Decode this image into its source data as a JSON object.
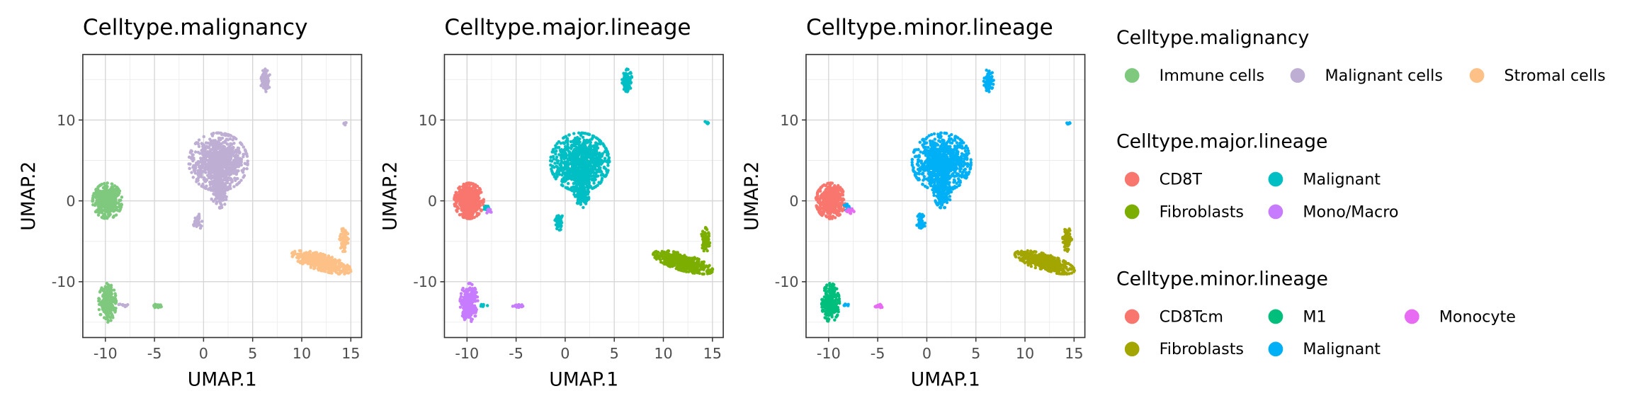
{
  "chart_data": [
    {
      "type": "scatter",
      "title": "Celltype.malignancy",
      "xlabel": "UMAP.1",
      "ylabel": "UMAP.2",
      "xlim": [
        -12.3,
        16.1
      ],
      "ylim": [
        -16.9,
        18.1
      ],
      "xticks": [
        -10,
        -5,
        0,
        5,
        10,
        15
      ],
      "xtick_labels": [
        "-10",
        "-5",
        "0",
        "5",
        "10",
        "15"
      ],
      "yticks": [
        -10,
        0,
        10
      ],
      "ytick_labels": [
        "-10",
        "0",
        "10"
      ],
      "grid": true,
      "clusters": [
        {
          "category": "Malignant cells",
          "cx": 1.5,
          "cy": 4.8,
          "rx": 3.0,
          "ry": 3.6,
          "n": 900
        },
        {
          "category": "Malignant cells",
          "cx": 1.6,
          "cy": 1.3,
          "rx": 0.9,
          "ry": 2.2,
          "n": 180
        },
        {
          "category": "Malignant cells",
          "cx": 6.3,
          "cy": 14.9,
          "rx": 0.5,
          "ry": 1.4,
          "n": 90
        },
        {
          "category": "Malignant cells",
          "cx": -0.6,
          "cy": -2.6,
          "rx": 0.45,
          "ry": 1.0,
          "n": 40
        },
        {
          "category": "Malignant cells",
          "cx": 14.4,
          "cy": 9.6,
          "rx": 0.25,
          "ry": 0.25,
          "n": 8
        },
        {
          "category": "Malignant cells",
          "cx": -8.2,
          "cy": -12.9,
          "rx": 0.5,
          "ry": 0.2,
          "n": 10
        },
        {
          "category": "Immune cells",
          "cx": -9.8,
          "cy": 0.0,
          "rx": 1.5,
          "ry": 2.2,
          "n": 500
        },
        {
          "category": "Immune cells",
          "cx": -9.8,
          "cy": -12.6,
          "rx": 0.9,
          "ry": 2.4,
          "n": 250
        },
        {
          "category": "Immune cells",
          "cx": -4.8,
          "cy": -13.0,
          "rx": 0.55,
          "ry": 0.2,
          "n": 20
        },
        {
          "category": "Stromal cells",
          "cx": 12.0,
          "cy": -7.6,
          "rx": 3.2,
          "ry": 1.0,
          "n": 500,
          "angle": -20
        },
        {
          "category": "Stromal cells",
          "cx": 14.3,
          "cy": -4.8,
          "rx": 0.45,
          "ry": 1.5,
          "n": 80
        }
      ]
    },
    {
      "type": "scatter",
      "title": "Celltype.major.lineage",
      "xlabel": "UMAP.1",
      "ylabel": "UMAP.2",
      "xlim": [
        -12.3,
        16.1
      ],
      "ylim": [
        -16.9,
        18.1
      ],
      "xticks": [
        -10,
        -5,
        0,
        5,
        10,
        15
      ],
      "xtick_labels": [
        "-10",
        "-5",
        "0",
        "5",
        "10",
        "15"
      ],
      "yticks": [
        -10,
        0,
        10
      ],
      "ytick_labels": [
        "-10",
        "0",
        "10"
      ],
      "grid": true,
      "clusters": [
        {
          "category": "Malignant",
          "cx": 1.5,
          "cy": 4.8,
          "rx": 3.0,
          "ry": 3.6,
          "n": 900
        },
        {
          "category": "Malignant",
          "cx": 1.6,
          "cy": 1.3,
          "rx": 0.9,
          "ry": 2.2,
          "n": 180
        },
        {
          "category": "Malignant",
          "cx": 6.3,
          "cy": 14.9,
          "rx": 0.5,
          "ry": 1.4,
          "n": 90
        },
        {
          "category": "Malignant",
          "cx": -0.6,
          "cy": -2.6,
          "rx": 0.45,
          "ry": 1.0,
          "n": 40
        },
        {
          "category": "Malignant",
          "cx": 14.4,
          "cy": 9.6,
          "rx": 0.25,
          "ry": 0.25,
          "n": 8
        },
        {
          "category": "CD8T",
          "cx": -9.8,
          "cy": 0.0,
          "rx": 1.5,
          "ry": 2.2,
          "n": 500
        },
        {
          "category": "Malignant",
          "cx": -8.1,
          "cy": -0.8,
          "rx": 0.4,
          "ry": 0.4,
          "n": 12
        },
        {
          "category": "Mono/Macro",
          "cx": -7.8,
          "cy": -1.2,
          "rx": 0.4,
          "ry": 0.4,
          "n": 12
        },
        {
          "category": "Mono/Macro",
          "cx": -9.8,
          "cy": -12.6,
          "rx": 0.9,
          "ry": 2.4,
          "n": 250
        },
        {
          "category": "Mono/Macro",
          "cx": -4.8,
          "cy": -13.0,
          "rx": 0.55,
          "ry": 0.2,
          "n": 20
        },
        {
          "category": "Malignant",
          "cx": -8.3,
          "cy": -12.9,
          "rx": 0.4,
          "ry": 0.2,
          "n": 8
        },
        {
          "category": "Fibroblasts",
          "cx": 12.0,
          "cy": -7.6,
          "rx": 3.2,
          "ry": 1.0,
          "n": 500,
          "angle": -20
        },
        {
          "category": "Fibroblasts",
          "cx": 14.3,
          "cy": -4.8,
          "rx": 0.45,
          "ry": 1.5,
          "n": 80
        }
      ]
    },
    {
      "type": "scatter",
      "title": "Celltype.minor.lineage",
      "xlabel": "UMAP.1",
      "ylabel": "UMAP.2",
      "xlim": [
        -12.3,
        16.1
      ],
      "ylim": [
        -16.9,
        18.1
      ],
      "xticks": [
        -10,
        -5,
        0,
        5,
        10,
        15
      ],
      "xtick_labels": [
        "-10",
        "-5",
        "0",
        "5",
        "10",
        "15"
      ],
      "yticks": [
        -10,
        0,
        10
      ],
      "ytick_labels": [
        "-10",
        "0",
        "10"
      ],
      "grid": true,
      "clusters": [
        {
          "category": "Malignant",
          "cx": 1.5,
          "cy": 4.8,
          "rx": 3.0,
          "ry": 3.6,
          "n": 900
        },
        {
          "category": "Malignant",
          "cx": 1.6,
          "cy": 1.3,
          "rx": 0.9,
          "ry": 2.2,
          "n": 180
        },
        {
          "category": "Malignant",
          "cx": 6.3,
          "cy": 14.9,
          "rx": 0.5,
          "ry": 1.4,
          "n": 90
        },
        {
          "category": "Malignant",
          "cx": -0.6,
          "cy": -2.6,
          "rx": 0.45,
          "ry": 1.0,
          "n": 40
        },
        {
          "category": "Malignant",
          "cx": 14.4,
          "cy": 9.6,
          "rx": 0.25,
          "ry": 0.25,
          "n": 8
        },
        {
          "category": "CD8Tcm",
          "cx": -9.8,
          "cy": 0.0,
          "rx": 1.5,
          "ry": 2.2,
          "n": 500
        },
        {
          "category": "Malignant",
          "cx": -8.1,
          "cy": -0.8,
          "rx": 0.4,
          "ry": 0.4,
          "n": 12
        },
        {
          "category": "Monocyte",
          "cx": -7.8,
          "cy": -1.2,
          "rx": 0.4,
          "ry": 0.4,
          "n": 12
        },
        {
          "category": "M1",
          "cx": -9.8,
          "cy": -12.6,
          "rx": 0.9,
          "ry": 2.4,
          "n": 250
        },
        {
          "category": "Monocyte",
          "cx": -4.8,
          "cy": -13.0,
          "rx": 0.55,
          "ry": 0.2,
          "n": 20
        },
        {
          "category": "Malignant",
          "cx": -8.3,
          "cy": -12.9,
          "rx": 0.4,
          "ry": 0.2,
          "n": 8
        },
        {
          "category": "Fibroblasts",
          "cx": 12.0,
          "cy": -7.6,
          "rx": 3.2,
          "ry": 1.0,
          "n": 500,
          "angle": -20
        },
        {
          "category": "Fibroblasts",
          "cx": 14.3,
          "cy": -4.8,
          "rx": 0.45,
          "ry": 1.5,
          "n": 80
        }
      ]
    }
  ],
  "legends": [
    {
      "title": "Celltype.malignancy",
      "entries": [
        {
          "label": "Immune cells",
          "color": "#7fc97f"
        },
        {
          "label": "Malignant cells",
          "color": "#beaed4"
        },
        {
          "label": "Stromal cells",
          "color": "#fdc086"
        }
      ]
    },
    {
      "title": "Celltype.major.lineage",
      "entries": [
        {
          "label": "CD8T",
          "color": "#f8766d"
        },
        {
          "label": "Fibroblasts",
          "color": "#7cae00"
        },
        {
          "label": "Malignant",
          "color": "#00bfc4"
        },
        {
          "label": "Mono/Macro",
          "color": "#c77cff"
        }
      ]
    },
    {
      "title": "Celltype.minor.lineage",
      "entries": [
        {
          "label": "CD8Tcm",
          "color": "#f8766d"
        },
        {
          "label": "Fibroblasts",
          "color": "#a3a500"
        },
        {
          "label": "M1",
          "color": "#00bf7d"
        },
        {
          "label": "Malignant",
          "color": "#00b0f6"
        },
        {
          "label": "Monocyte",
          "color": "#e76bf3"
        }
      ]
    }
  ]
}
